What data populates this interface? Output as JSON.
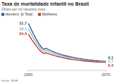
{
  "chart_data": {
    "type": "line",
    "title": "Taxa de mortalidade infantil no Brasil",
    "subtitle": "Óbitos por mil nascidos vivos",
    "source": "Fonte: IBGE",
    "x": [
      2000,
      2003,
      2005,
      2008,
      2010,
      2012,
      2014,
      2015,
      2016,
      2018,
      2020,
      2025,
      2030,
      2035,
      2040,
      2045,
      2050,
      2055,
      2060,
      2065,
      2070
    ],
    "xlim": [
      2000,
      2070
    ],
    "xticks": [
      2000,
      2070
    ],
    "ylim": [
      0,
      35
    ],
    "yticks": [],
    "tick_labels": "x",
    "grid": false,
    "legend": "top-left",
    "data_labels": true,
    "series": [
      {
        "name": "Homens",
        "color": "#2a5d8f",
        "values": [
          31.7,
          27.0,
          24.0,
          20.0,
          17.5,
          15.5,
          14.2,
          14.5,
          14.8,
          14.0,
          13.3,
          11.8,
          10.6,
          9.6,
          8.8,
          8.1,
          7.5,
          7.0,
          6.6,
          6.3,
          6.1
        ],
        "value_labels": [
          "31,7",
          null,
          null,
          null,
          null,
          null,
          null,
          null,
          null,
          null,
          null,
          null,
          null,
          null,
          null,
          null,
          null,
          null,
          null,
          null,
          "6,1"
        ]
      },
      {
        "name": "Total",
        "color": "#9db4c8",
        "values": [
          28.1,
          24.0,
          21.4,
          17.9,
          15.7,
          13.9,
          12.8,
          13.1,
          13.3,
          12.6,
          12.0,
          10.7,
          9.7,
          8.8,
          8.1,
          7.5,
          7.0,
          6.5,
          6.1,
          5.9,
          5.7
        ],
        "value_labels": [
          "28,1",
          null,
          null,
          null,
          null,
          null,
          null,
          null,
          null,
          null,
          null,
          null,
          null,
          null,
          null,
          null,
          null,
          null,
          null,
          null,
          "5,7"
        ]
      },
      {
        "name": "Mulheres",
        "color": "#c0392b",
        "values": [
          24.4,
          20.9,
          18.7,
          15.7,
          13.8,
          12.3,
          11.3,
          11.6,
          11.8,
          11.2,
          10.7,
          9.6,
          8.7,
          7.9,
          7.3,
          6.8,
          6.4,
          6.0,
          5.7,
          5.5,
          5.4
        ],
        "value_labels": [
          "24,4",
          null,
          null,
          null,
          null,
          null,
          null,
          null,
          null,
          null,
          null,
          null,
          null,
          null,
          null,
          null,
          null,
          null,
          null,
          null,
          "5,4"
        ]
      }
    ]
  }
}
